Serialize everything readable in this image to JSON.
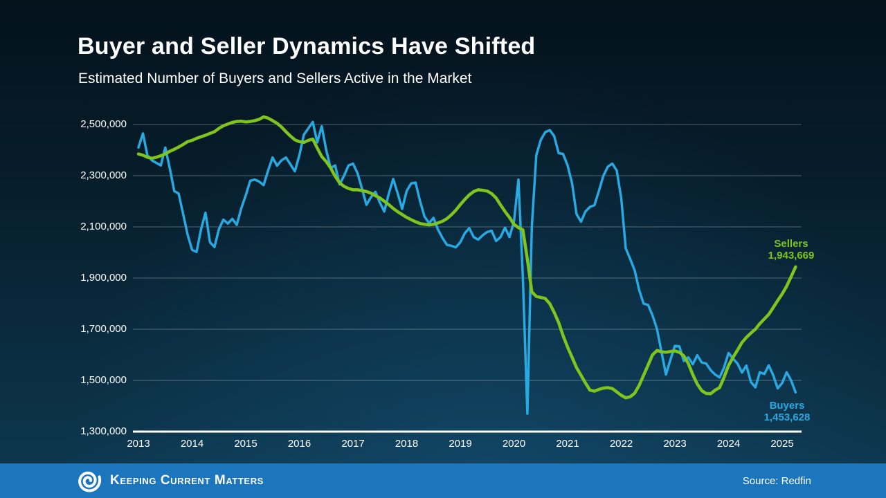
{
  "slide": {
    "title": "Buyer and Seller Dynamics Have Shifted",
    "subtitle": "Estimated Number of Buyers and Sellers Active in the Market",
    "footer": {
      "brand": "Keeping Current Matters",
      "source": "Source: Redfin",
      "background_color": "#1B76BD"
    },
    "colors": {
      "background_top": "#04121C",
      "background_bottom": "#0E3A52",
      "buyers_line": "#29A9E1",
      "sellers_line": "#80C41E",
      "gridline": "rgba(255,255,255,0.3)",
      "axis_line": "#FFFFFF",
      "text": "#FFFFFF"
    }
  },
  "chart_data": {
    "type": "line",
    "title": "Buyer and Seller Dynamics Have Shifted",
    "subtitle": "Estimated Number of Buyers and Sellers Active in the Market",
    "xlabel": "",
    "ylabel": "",
    "grid": "horizontal",
    "x_interval": "monthly",
    "x_months_start": "2013-01",
    "x_months_end": "2025-04",
    "x_tick_labels": [
      "2013",
      "2014",
      "2015",
      "2016",
      "2017",
      "2018",
      "2019",
      "2020",
      "2021",
      "2022",
      "2023",
      "2024",
      "2025"
    ],
    "y_ticks": [
      2500000,
      2300000,
      2100000,
      1900000,
      1700000,
      1500000,
      1300000
    ],
    "y_tick_labels": [
      "2,500,000",
      "2,300,000",
      "2,100,000",
      "1,900,000",
      "1,700,000",
      "1,500,000",
      "1,300,000"
    ],
    "ylim": [
      1300000,
      2500000
    ],
    "legend": "end-of-line-labels",
    "annotations": [
      {
        "series": "Sellers",
        "label": "Sellers",
        "value_label": "1,943,669",
        "value": 1943669,
        "color": "#80C41E",
        "position": "above-line-end"
      },
      {
        "series": "Buyers",
        "label": "Buyers",
        "value_label": "1,453,628",
        "value": 1453628,
        "color": "#29A9E1",
        "position": "below-line-end"
      }
    ],
    "series": [
      {
        "name": "Buyers",
        "color": "#29A9E1",
        "values": [
          2410000,
          2465000,
          2380000,
          2360000,
          2350000,
          2340000,
          2410000,
          2330000,
          2240000,
          2230000,
          2150000,
          2070000,
          2010000,
          2002000,
          2090000,
          2155000,
          2040000,
          2021000,
          2091000,
          2128000,
          2113000,
          2131000,
          2108000,
          2172000,
          2223000,
          2280000,
          2285000,
          2277000,
          2263000,
          2320000,
          2371000,
          2339000,
          2360000,
          2371000,
          2344000,
          2317000,
          2380000,
          2460000,
          2485000,
          2510000,
          2430000,
          2493000,
          2400000,
          2330000,
          2340000,
          2266000,
          2300000,
          2340000,
          2347000,
          2310000,
          2250000,
          2186000,
          2215000,
          2237000,
          2195000,
          2160000,
          2230000,
          2287000,
          2230000,
          2170000,
          2240000,
          2270000,
          2273000,
          2200000,
          2140000,
          2115000,
          2135000,
          2090000,
          2057000,
          2030000,
          2026000,
          2020000,
          2040000,
          2075000,
          2095000,
          2060000,
          2050000,
          2067000,
          2080000,
          2085000,
          2045000,
          2060000,
          2097000,
          2060000,
          2120000,
          2285000,
          1900000,
          1370000,
          2100000,
          2380000,
          2440000,
          2470000,
          2478000,
          2455000,
          2388000,
          2385000,
          2340000,
          2270000,
          2150000,
          2120000,
          2160000,
          2178000,
          2185000,
          2240000,
          2300000,
          2335000,
          2347000,
          2320000,
          2212000,
          2016000,
          1975000,
          1930000,
          1854000,
          1800000,
          1795000,
          1754000,
          1700000,
          1612000,
          1523000,
          1580000,
          1635000,
          1633000,
          1576000,
          1590000,
          1563000,
          1598000,
          1570000,
          1566000,
          1540000,
          1523000,
          1512000,
          1550000,
          1607000,
          1585000,
          1566000,
          1531000,
          1558000,
          1494000,
          1473000,
          1532000,
          1525000,
          1559000,
          1520000,
          1469000,
          1490000,
          1532000,
          1500000,
          1453628
        ]
      },
      {
        "name": "Sellers",
        "color": "#80C41E",
        "values": [
          2385000,
          2380000,
          2372000,
          2368000,
          2372000,
          2378000,
          2385000,
          2395000,
          2403000,
          2412000,
          2422000,
          2433000,
          2438000,
          2446000,
          2452000,
          2458000,
          2465000,
          2472000,
          2485000,
          2495000,
          2502000,
          2508000,
          2512000,
          2513000,
          2510000,
          2512000,
          2515000,
          2520000,
          2530000,
          2525000,
          2515000,
          2505000,
          2490000,
          2472000,
          2455000,
          2440000,
          2433000,
          2430000,
          2438000,
          2443000,
          2408000,
          2375000,
          2355000,
          2330000,
          2298000,
          2272000,
          2258000,
          2250000,
          2245000,
          2245000,
          2242000,
          2238000,
          2232000,
          2222000,
          2213000,
          2200000,
          2187000,
          2172000,
          2159000,
          2148000,
          2137000,
          2128000,
          2120000,
          2113000,
          2110000,
          2108000,
          2110000,
          2115000,
          2122000,
          2132000,
          2147000,
          2165000,
          2187000,
          2207000,
          2225000,
          2238000,
          2245000,
          2243000,
          2240000,
          2230000,
          2213000,
          2186000,
          2160000,
          2137000,
          2110000,
          2097000,
          2088000,
          1973000,
          1846000,
          1828000,
          1824000,
          1820000,
          1800000,
          1766000,
          1726000,
          1675000,
          1630000,
          1590000,
          1550000,
          1520000,
          1490000,
          1462000,
          1458000,
          1465000,
          1470000,
          1472000,
          1468000,
          1455000,
          1442000,
          1432000,
          1436000,
          1450000,
          1480000,
          1520000,
          1560000,
          1600000,
          1617000,
          1612000,
          1610000,
          1613000,
          1615000,
          1610000,
          1596000,
          1566000,
          1523000,
          1486000,
          1460000,
          1449000,
          1448000,
          1462000,
          1472000,
          1512000,
          1558000,
          1590000,
          1618000,
          1648000,
          1668000,
          1685000,
          1700000,
          1722000,
          1740000,
          1758000,
          1785000,
          1812000,
          1838000,
          1868000,
          1905000,
          1943669
        ]
      }
    ]
  }
}
